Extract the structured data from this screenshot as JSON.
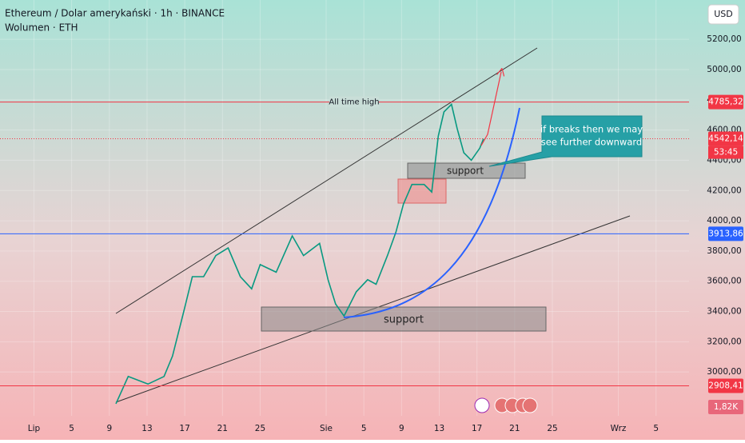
{
  "chart_data": {
    "type": "line",
    "title": "Ethereum / Dolar amerykański · 1h · BINANCE",
    "subtitle": "Wolumen · ETH",
    "currency": "USD",
    "x": [
      8.7,
      10.0,
      12.1,
      13.8,
      14.7,
      15.9,
      16.8,
      18.0,
      19.3,
      20.6,
      21.9,
      23.1,
      24.0,
      25.7,
      27.4,
      28.6,
      30.3,
      31.2,
      32.0,
      32.9,
      34.2,
      35.4,
      36.3,
      37.5,
      38.4,
      39.2,
      40.1,
      41.4,
      42.2,
      42.9,
      43.5,
      44.3,
      44.9,
      45.6,
      46.4,
      47.3,
      47.7
    ],
    "values": [
      2790,
      2970,
      2920,
      2970,
      3105,
      3400,
      3630,
      3630,
      3770,
      3820,
      3630,
      3550,
      3710,
      3660,
      3900,
      3770,
      3850,
      3610,
      3450,
      3370,
      3530,
      3610,
      3580,
      3770,
      3925,
      4110,
      4240,
      4240,
      4190,
      4560,
      4720,
      4770,
      4610,
      4450,
      4400,
      4480,
      4542.14
    ],
    "color": "#089981",
    "xlim": [
      -3.6,
      69.5
    ],
    "ylim": [
      2710,
      5460
    ],
    "xticks": [
      {
        "value": 0,
        "label": "Lip"
      },
      {
        "value": 4,
        "label": "5"
      },
      {
        "value": 8,
        "label": "9"
      },
      {
        "value": 12,
        "label": "13"
      },
      {
        "value": 16,
        "label": "17"
      },
      {
        "value": 20,
        "label": "21"
      },
      {
        "value": 24,
        "label": "25"
      },
      {
        "value": 31,
        "label": "Sie"
      },
      {
        "value": 35,
        "label": "5"
      },
      {
        "value": 39,
        "label": "9"
      },
      {
        "value": 43,
        "label": "13"
      },
      {
        "value": 47,
        "label": "17"
      },
      {
        "value": 51,
        "label": "21"
      },
      {
        "value": 55,
        "label": "25"
      },
      {
        "value": 62,
        "label": "Wrz"
      },
      {
        "value": 66,
        "label": "5"
      }
    ],
    "yticks": [
      {
        "value": 3000,
        "label": "3000,00"
      },
      {
        "value": 3200,
        "label": "3200,00"
      },
      {
        "value": 3400,
        "label": "3400,00"
      },
      {
        "value": 3600,
        "label": "3600,00"
      },
      {
        "value": 3800,
        "label": "3800,00"
      },
      {
        "value": 4000,
        "label": "4000,00"
      },
      {
        "value": 4200,
        "label": "4200,00"
      },
      {
        "value": 4400,
        "label": "4400,00"
      },
      {
        "value": 4600,
        "label": "4600,00"
      },
      {
        "value": 4800,
        "label": "4800,00"
      },
      {
        "value": 5000,
        "label": "5000,00"
      },
      {
        "value": 5200,
        "label": "5200,00"
      }
    ],
    "levels": [
      {
        "value": 4785.32,
        "label": "4785,32",
        "color": "#f23645"
      },
      {
        "value": 3913.86,
        "label": "3913,86",
        "color": "#2962ff"
      },
      {
        "value": 2908.41,
        "label": "2908,41",
        "color": "#f23645"
      }
    ],
    "last_price": {
      "value": 4542.14,
      "label": "4542,14",
      "countdown": "53:45",
      "color": "#f23645"
    },
    "volume_label": "1,82K",
    "annotations": {
      "ath": "All time high",
      "support_upper": "support",
      "support_lower": "support",
      "callout": [
        "if breaks then we may",
        "see further downward"
      ]
    }
  }
}
